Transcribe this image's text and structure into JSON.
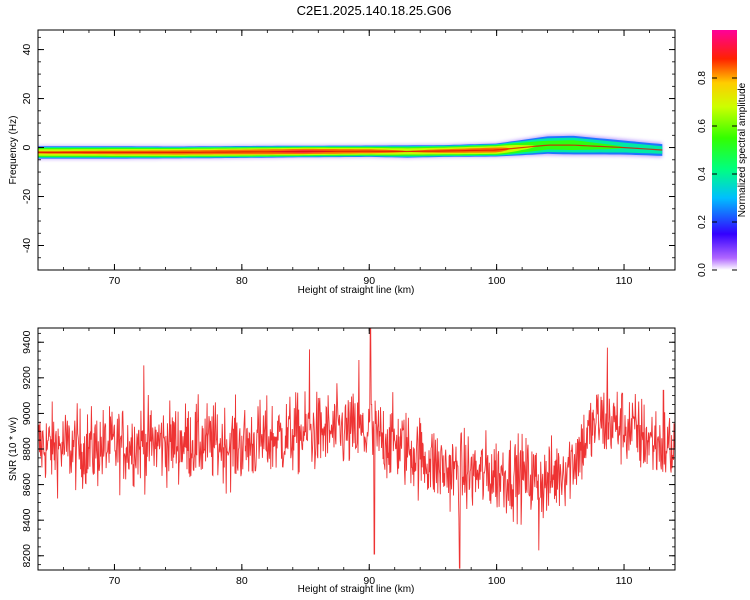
{
  "title": "C2E1.2025.140.18.25.G06",
  "colors": {
    "snr_line": "#ee3333",
    "axis": "#000000"
  },
  "chart_data": [
    {
      "type": "heatmap",
      "title": "C2E1.2025.140.18.25.G06",
      "xlabel": "Height of straight line (km)",
      "ylabel": "Frequency (Hz)",
      "xlim": [
        64,
        114
      ],
      "ylim": [
        -50,
        48
      ],
      "xticks": [
        70,
        80,
        90,
        100,
        110
      ],
      "yticks": [
        40,
        20,
        0,
        -20,
        -40
      ],
      "xtick_labels": [
        "70",
        "80",
        "90",
        "100",
        "110"
      ],
      "ytick_labels": [
        "40",
        "20",
        "0",
        "-20",
        "-40"
      ],
      "band": {
        "x": [
          64,
          70,
          75,
          80,
          85,
          90,
          93,
          96,
          100,
          102,
          104,
          106,
          108,
          110,
          113
        ],
        "center_hz": [
          -2,
          -2,
          -2,
          -1.8,
          -1.6,
          -1.5,
          -1.6,
          -1.4,
          -1,
          0,
          1,
          1,
          0.5,
          0,
          -1
        ],
        "half_width_hz": [
          2.5,
          2.5,
          2.4,
          2.4,
          2.3,
          2.3,
          2.5,
          2.4,
          2.6,
          3.2,
          3.8,
          4.0,
          3.6,
          3.2,
          2.8
        ],
        "peak_amplitude": [
          0.82,
          0.85,
          0.88,
          0.9,
          0.95,
          0.88,
          0.8,
          0.86,
          0.9,
          0.7,
          0.6,
          0.62,
          0.55,
          0.5,
          0.45
        ]
      },
      "colorbar": {
        "label": "Normalized spectral amplitude",
        "range": [
          0,
          1
        ],
        "ticks": [
          0.0,
          0.2,
          0.4,
          0.6,
          0.8
        ],
        "tick_labels": [
          "0.0",
          "0.2",
          "0.4",
          "0.6",
          "0.8"
        ]
      }
    },
    {
      "type": "line",
      "xlabel": "Height of straight line (km)",
      "ylabel": "SNR (10 * v/v)",
      "xlim": [
        64,
        114
      ],
      "ylim": [
        8120,
        9480
      ],
      "xticks": [
        70,
        80,
        90,
        100,
        110
      ],
      "yticks": [
        8200,
        8400,
        8600,
        8800,
        9000,
        9200,
        9400
      ],
      "xtick_labels": [
        "70",
        "80",
        "90",
        "100",
        "110"
      ],
      "ytick_labels": [
        "8200",
        "8400",
        "8600",
        "8800",
        "9000",
        "9200",
        "9400"
      ],
      "series": [
        {
          "name": "SNR",
          "trend_x": [
            64,
            68,
            72,
            76,
            80,
            84,
            88,
            90,
            92,
            94,
            96,
            98,
            100,
            102,
            104,
            106,
            108,
            110,
            112,
            114
          ],
          "trend_y": [
            8820,
            8800,
            8830,
            8840,
            8820,
            8880,
            8900,
            8880,
            8840,
            8760,
            8680,
            8660,
            8660,
            8650,
            8610,
            8740,
            8960,
            8930,
            8850,
            8800
          ],
          "noise_std": 110,
          "spikes": [
            {
              "x": 72.3,
              "y": 9270
            },
            {
              "x": 85.3,
              "y": 9360
            },
            {
              "x": 89.2,
              "y": 9300
            },
            {
              "x": 90.1,
              "y": 9480
            },
            {
              "x": 90.4,
              "y": 8210
            },
            {
              "x": 97.1,
              "y": 8130
            },
            {
              "x": 103.3,
              "y": 8230
            },
            {
              "x": 108.7,
              "y": 9370
            },
            {
              "x": 113.1,
              "y": 9130
            }
          ]
        }
      ]
    }
  ]
}
